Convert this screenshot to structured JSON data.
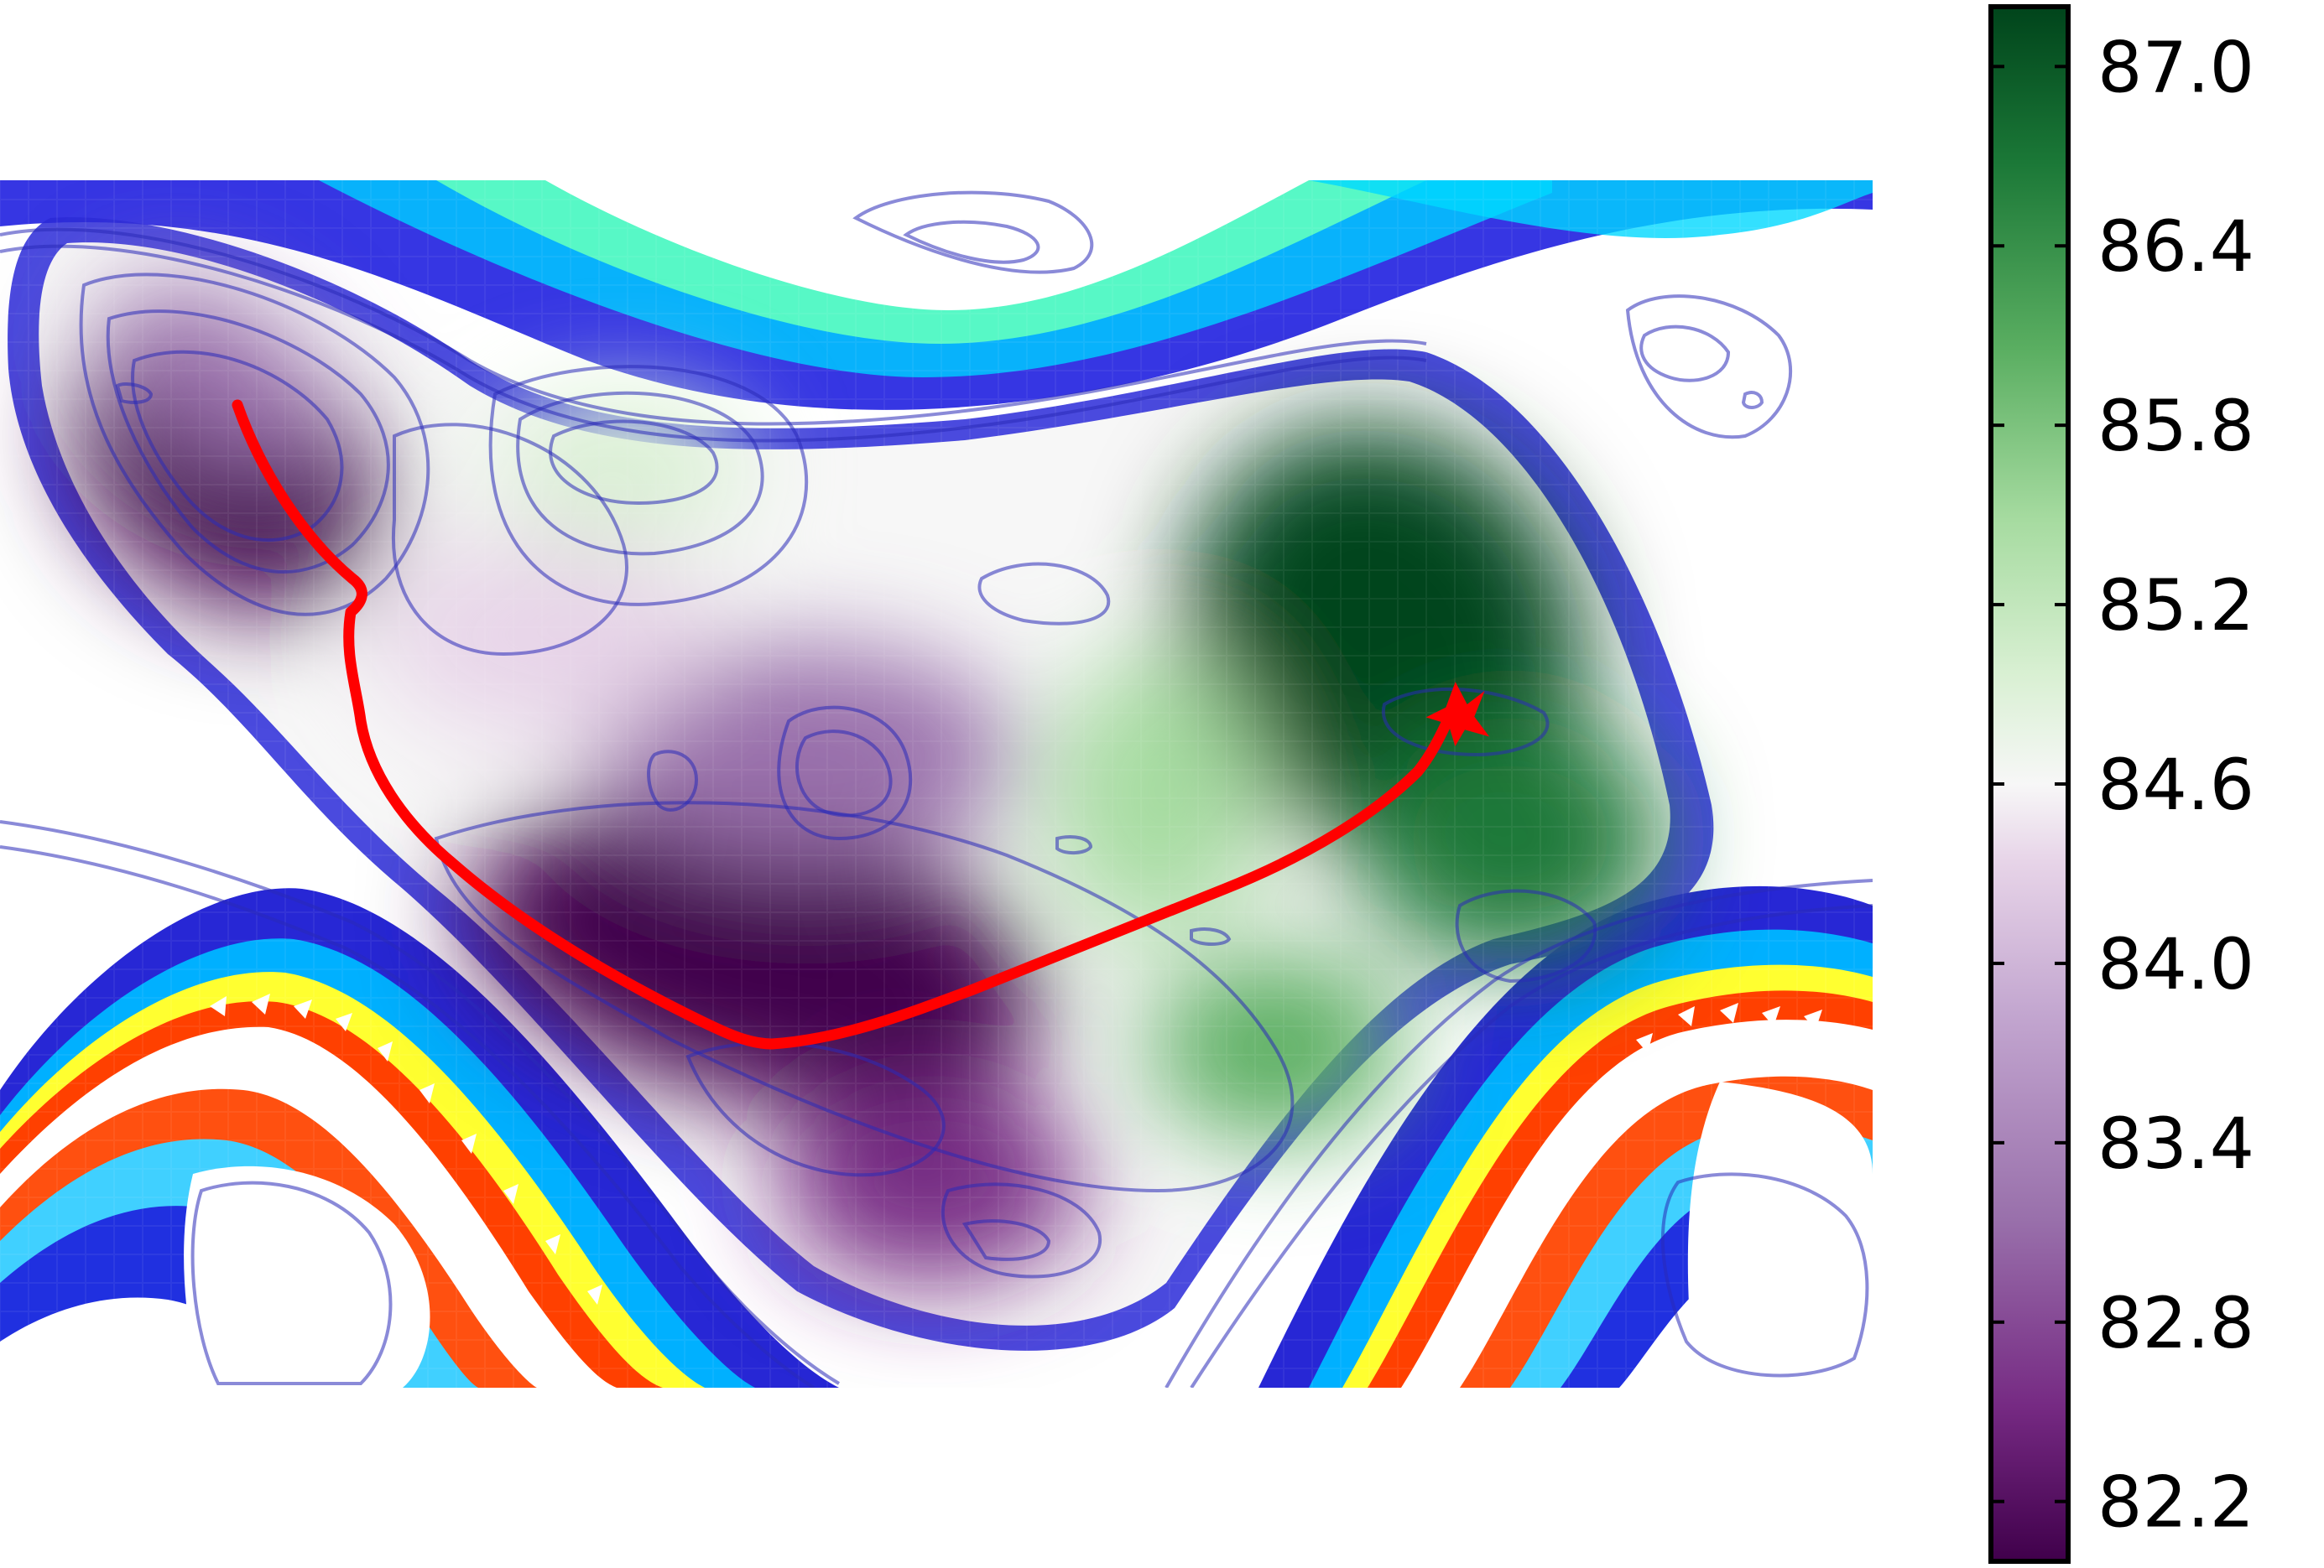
{
  "chart_data": {
    "type": "heatmap",
    "title": "",
    "xlabel": "",
    "ylabel": "",
    "colorbar": {
      "colormap": "PRGn",
      "range": [
        82.0,
        87.2
      ],
      "ticks": [
        {
          "value": 82.2,
          "label": "82.2"
        },
        {
          "value": 82.8,
          "label": "82.8"
        },
        {
          "value": 83.4,
          "label": "83.4"
        },
        {
          "value": 84.0,
          "label": "84.0"
        },
        {
          "value": 84.6,
          "label": "84.6"
        },
        {
          "value": 85.2,
          "label": "85.2"
        },
        {
          "value": 85.8,
          "label": "85.8"
        },
        {
          "value": 86.4,
          "label": "86.4"
        },
        {
          "value": 87.0,
          "label": "87.0"
        }
      ],
      "placement": "right"
    },
    "overlays": {
      "energy_walls": "jet-colored bands along the upper and lower surface boundaries",
      "contours": "thin dark-blue translucent contour lines",
      "path": {
        "color": "#ff0000",
        "start": "upper-left purple basin",
        "end": "green basin, marked with a star"
      }
    },
    "colors": {
      "path": "#ff0000",
      "contour": "#3a3acc",
      "purple_low": "#40004b",
      "green_high": "#00441b"
    }
  }
}
